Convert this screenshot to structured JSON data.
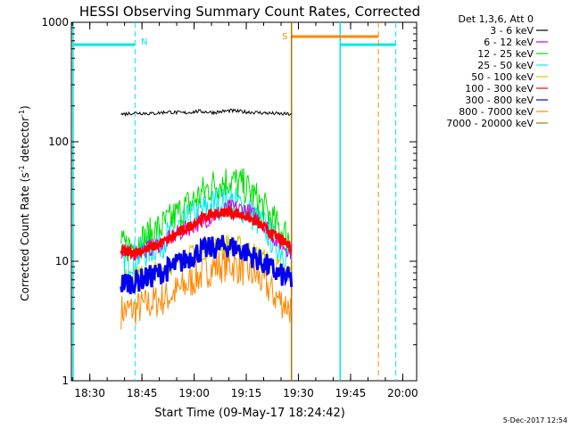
{
  "chart_data": {
    "type": "line",
    "title": "HESSI Observing Summary Count Rates, Corrected",
    "xlabel": "Start Time (09-May-17 18:24:42)",
    "ylabel_main": "Corrected Count Rate (s",
    "ylabel_sup1": "-1",
    "ylabel_mid": " detector",
    "ylabel_sup2": "-1",
    "ylabel_end": ")",
    "y_scale": "log",
    "ylim": [
      1,
      1000
    ],
    "xlim": [
      "18:24:42",
      "20:04:00"
    ],
    "x_ticks": [
      "18:30",
      "18:45",
      "19:00",
      "19:15",
      "19:30",
      "19:45",
      "20:00"
    ],
    "y_ticks": [
      "1",
      "10",
      "100",
      "1000"
    ],
    "legend_position": "outside-right",
    "legend_title": "Det 1,3,6, Att 0",
    "series": [
      {
        "name": "3 - 6 keV",
        "color": "#000000",
        "start": "18:39",
        "end": "19:28",
        "values": [
          170,
          175,
          172,
          178,
          174,
          180,
          176,
          182,
          178,
          175,
          172,
          170
        ]
      },
      {
        "name": "6 - 12 keV",
        "color": "#d400d4",
        "start": "18:39",
        "end": "19:28",
        "values": [
          11,
          12,
          13,
          15,
          18,
          21,
          24,
          28,
          27,
          22,
          15,
          12
        ]
      },
      {
        "name": "12 - 25 keV",
        "color": "#00dd00",
        "start": "18:39",
        "end": "19:28",
        "values": [
          13,
          14,
          17,
          21,
          27,
          35,
          44,
          48,
          42,
          30,
          20,
          15
        ]
      },
      {
        "name": "25 - 50 keV",
        "color": "#00e8e8",
        "start": "18:39",
        "end": "19:28",
        "values": [
          10,
          11,
          13,
          16,
          20,
          25,
          30,
          32,
          28,
          21,
          14,
          11
        ]
      },
      {
        "name": "50 - 100 keV",
        "color": "#cccc00",
        "start": "18:39",
        "end": "19:28",
        "values": [
          7,
          7.5,
          8,
          9,
          10.5,
          12,
          13.5,
          14,
          13,
          11,
          9,
          7.5
        ]
      },
      {
        "name": "100 - 300 keV",
        "color": "#ff0000",
        "start": "18:39",
        "end": "19:28",
        "values": [
          12,
          12,
          13,
          15,
          18,
          22,
          25,
          26,
          24,
          20,
          16,
          13
        ]
      },
      {
        "name": "300 - 800 keV",
        "color": "#0000ee",
        "start": "18:39",
        "end": "19:28",
        "values": [
          6.5,
          6.8,
          7.5,
          8.5,
          10,
          12,
          13,
          13.5,
          12,
          10,
          8,
          7
        ]
      },
      {
        "name": "800 - 7000 keV",
        "color": "#ff8800",
        "start": "18:39",
        "end": "19:28",
        "values": [
          3.8,
          4,
          4.5,
          5,
          6,
          7.5,
          9,
          9.5,
          8.5,
          7,
          5,
          4
        ]
      },
      {
        "name": "7000 - 20000 keV",
        "color": "#aa7700",
        "start": "18:39",
        "end": "19:28",
        "values": []
      }
    ],
    "annotations": [
      {
        "label": "N",
        "type": "night",
        "color": "#00e8e8"
      },
      {
        "label": "S",
        "type": "saa",
        "color": "#ff8800"
      }
    ]
  },
  "footer": {
    "timestamp": "5-Dec-2017 12:54"
  }
}
